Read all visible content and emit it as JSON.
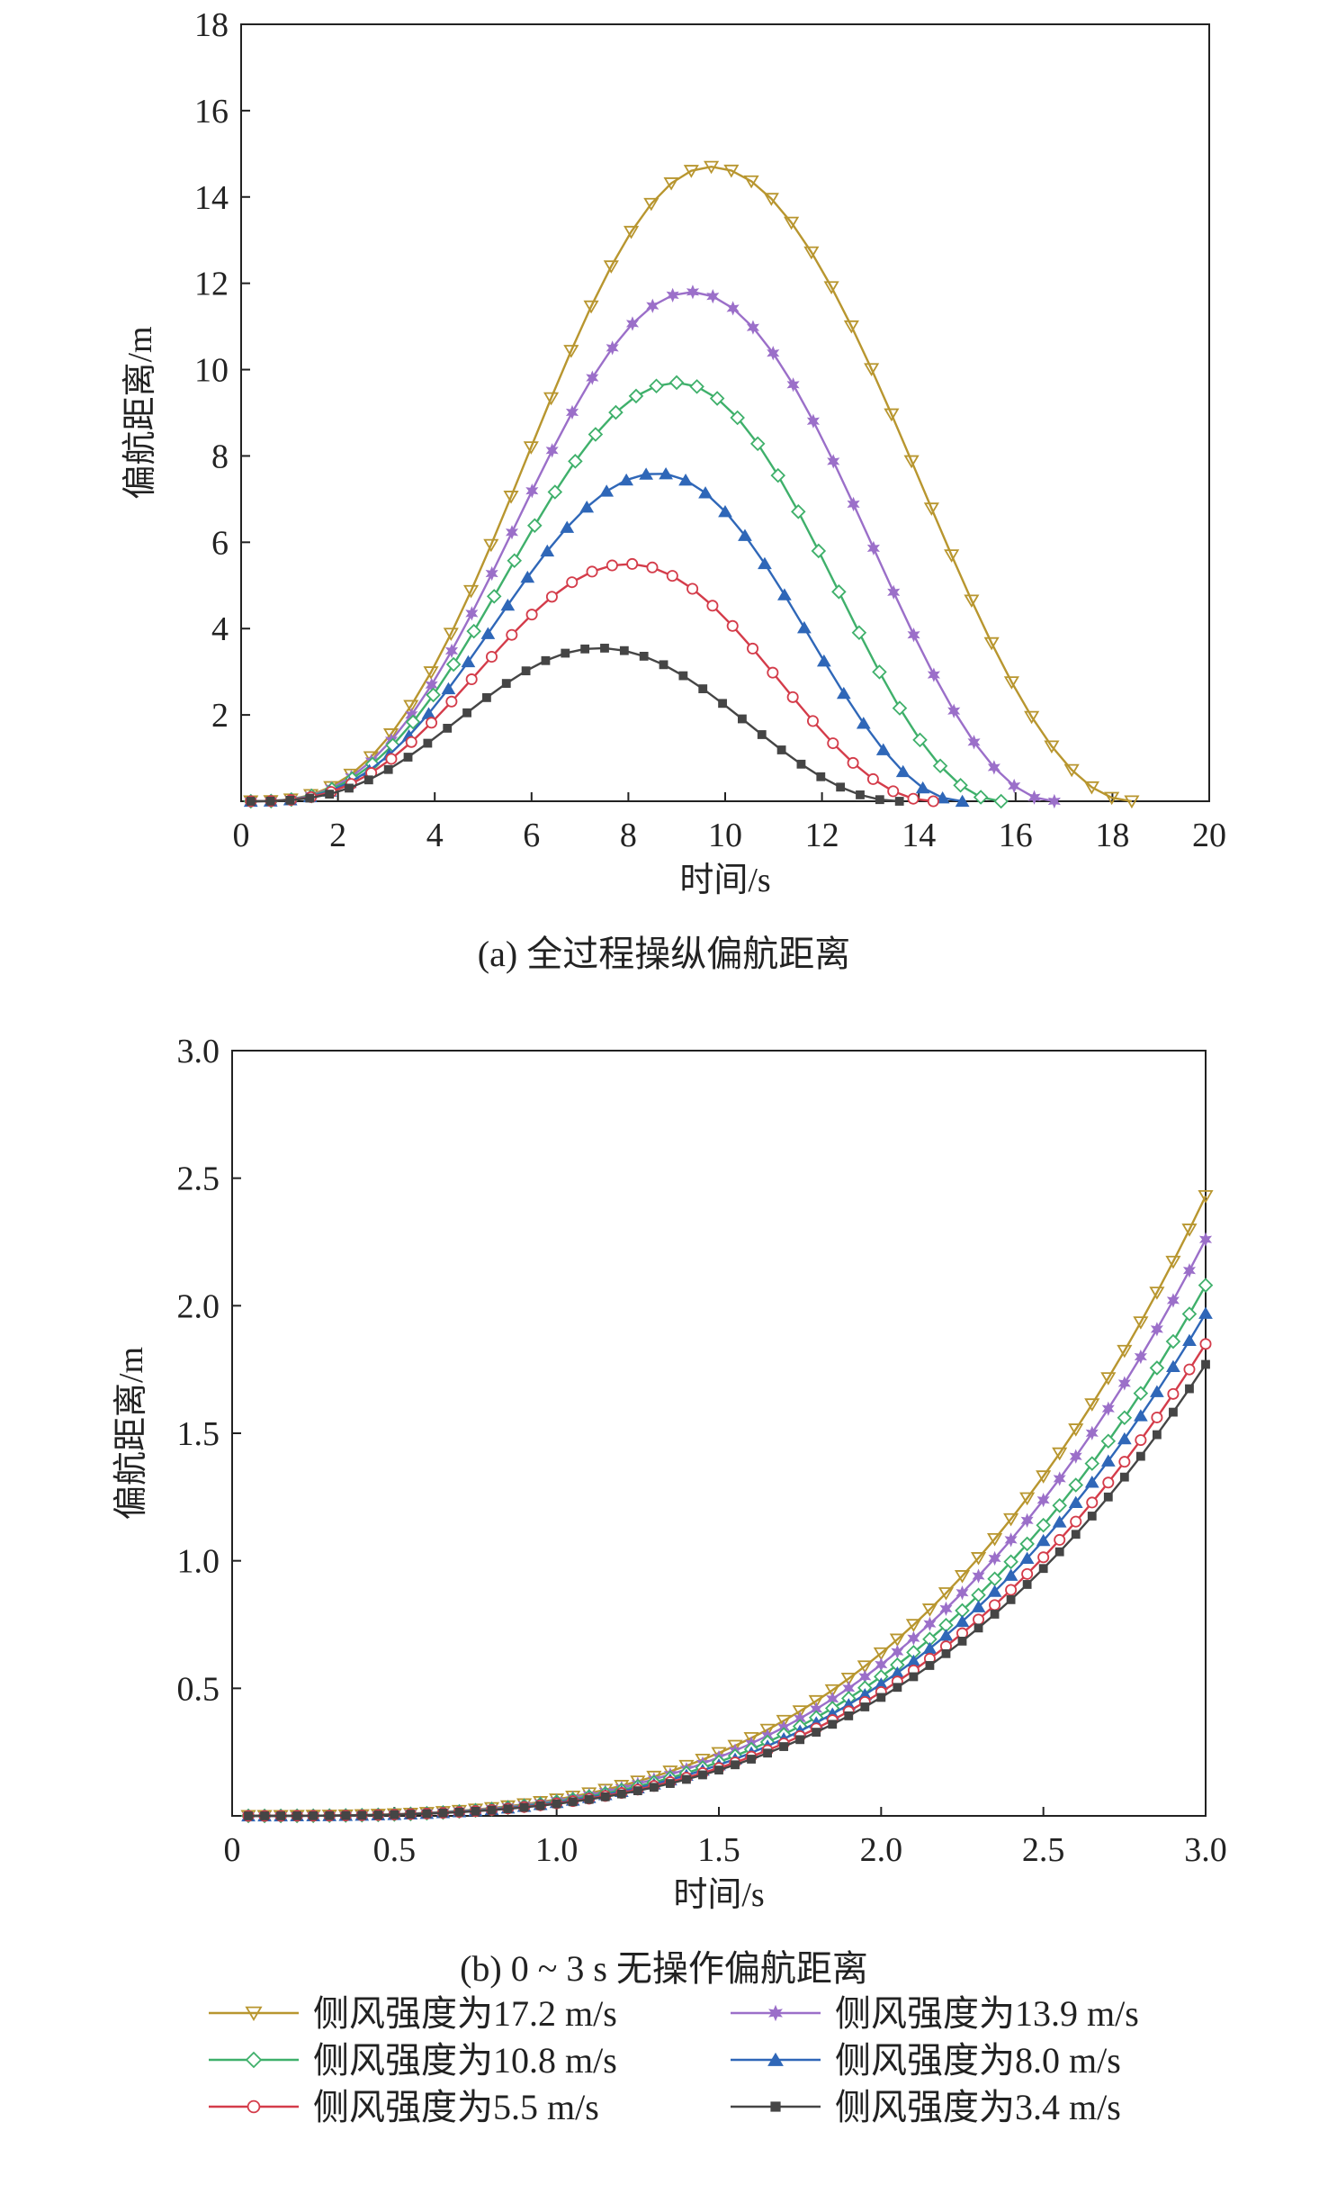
{
  "colors": {
    "w17_2": "#B8962F",
    "w13_9": "#9B6FC9",
    "w10_8": "#3FB06B",
    "w8_0": "#2F67B8",
    "w5_5": "#D43C4A",
    "w3_4": "#454545",
    "axis": "#222222"
  },
  "legend": [
    {
      "id": "w17_2",
      "label": "侧风强度为17.2 m/s",
      "marker": "triangle-down"
    },
    {
      "id": "w13_9",
      "label": "侧风强度为13.9 m/s",
      "marker": "star"
    },
    {
      "id": "w10_8",
      "label": "侧风强度为10.8 m/s",
      "marker": "diamond"
    },
    {
      "id": "w8_0",
      "label": "侧风强度为8.0 m/s",
      "marker": "triangle-up"
    },
    {
      "id": "w5_5",
      "label": "侧风强度为5.5 m/s",
      "marker": "circle"
    },
    {
      "id": "w3_4",
      "label": "侧风强度为3.4 m/s",
      "marker": "square"
    }
  ],
  "chart_data": [
    {
      "type": "line",
      "id": "a",
      "caption": "(a) 全过程操纵偏航距离",
      "xlabel": "时间/s",
      "ylabel": "偏航距离/m",
      "xlim": [
        0,
        20
      ],
      "ylim": [
        0,
        18
      ],
      "xticks": [
        0,
        2,
        4,
        6,
        8,
        10,
        12,
        14,
        16,
        18,
        20
      ],
      "xtick_labels": [
        "0",
        "2",
        "4",
        "6",
        "8",
        "10",
        "12",
        "14",
        "16",
        "18",
        "20"
      ],
      "yticks": [
        2,
        4,
        6,
        8,
        10,
        12,
        14,
        16,
        18
      ],
      "ytick_labels": [
        "2",
        "4",
        "6",
        "8",
        "10",
        "12",
        "14",
        "16",
        "18"
      ],
      "grid": false,
      "series": [
        {
          "id": "w17_2",
          "name": "侧风强度为17.2 m/s",
          "x_end": 18.4,
          "peak_x": 9.7,
          "peak_y": 14.7,
          "marker": "triangle-down",
          "n": 45
        },
        {
          "id": "w13_9",
          "name": "侧风强度为13.9 m/s",
          "x_end": 16.8,
          "peak_x": 9.3,
          "peak_y": 11.8,
          "marker": "star",
          "n": 41
        },
        {
          "id": "w10_8",
          "name": "侧风强度为10.8 m/s",
          "x_end": 15.7,
          "peak_x": 9.0,
          "peak_y": 9.7,
          "marker": "diamond",
          "n": 38
        },
        {
          "id": "w8_0",
          "name": "侧风强度为8.0 m/s",
          "x_end": 14.9,
          "peak_x": 8.6,
          "peak_y": 7.6,
          "marker": "triangle-up",
          "n": 37
        },
        {
          "id": "w5_5",
          "name": "侧风强度为5.5 m/s",
          "x_end": 14.3,
          "peak_x": 8.0,
          "peak_y": 5.5,
          "marker": "circle",
          "n": 35
        },
        {
          "id": "w3_4",
          "name": "侧风强度为3.4 m/s",
          "x_end": 13.6,
          "peak_x": 7.4,
          "peak_y": 3.55,
          "marker": "square",
          "n": 34
        }
      ]
    },
    {
      "type": "line",
      "id": "b",
      "caption": "(b) 0 ~ 3 s 无操作偏航距离",
      "xlabel": "时间/s",
      "ylabel": "偏航距离/m",
      "xlim": [
        0,
        3
      ],
      "ylim": [
        0,
        3
      ],
      "xticks": [
        0,
        0.5,
        1,
        1.5,
        2,
        2.5,
        3
      ],
      "xtick_labels": [
        "0",
        "0.5",
        "1.0",
        "1.5",
        "2.0",
        "2.5",
        "3.0"
      ],
      "yticks": [
        0.5,
        1,
        1.5,
        2,
        2.5,
        3
      ],
      "ytick_labels": [
        "0.5",
        "1.0",
        "1.5",
        "2.0",
        "2.5",
        "3.0"
      ],
      "grid": false,
      "x_start": 0.05,
      "x_end": 3.0,
      "series": [
        {
          "id": "w17_2",
          "name": "侧风强度为17.2 m/s",
          "value_at_3s": 2.43,
          "marker": "triangle-down",
          "n": 60
        },
        {
          "id": "w13_9",
          "name": "侧风强度为13.9 m/s",
          "value_at_3s": 2.26,
          "marker": "star",
          "n": 60
        },
        {
          "id": "w10_8",
          "name": "侧风强度为10.8 m/s",
          "value_at_3s": 2.08,
          "marker": "diamond",
          "n": 60
        },
        {
          "id": "w8_0",
          "name": "侧风强度为8.0 m/s",
          "value_at_3s": 1.97,
          "marker": "triangle-up",
          "n": 60
        },
        {
          "id": "w5_5",
          "name": "侧风强度为5.5 m/s",
          "value_at_3s": 1.85,
          "marker": "circle",
          "n": 60
        },
        {
          "id": "w3_4",
          "name": "侧风强度为3.4 m/s",
          "value_at_3s": 1.77,
          "marker": "square",
          "n": 60
        }
      ]
    }
  ]
}
